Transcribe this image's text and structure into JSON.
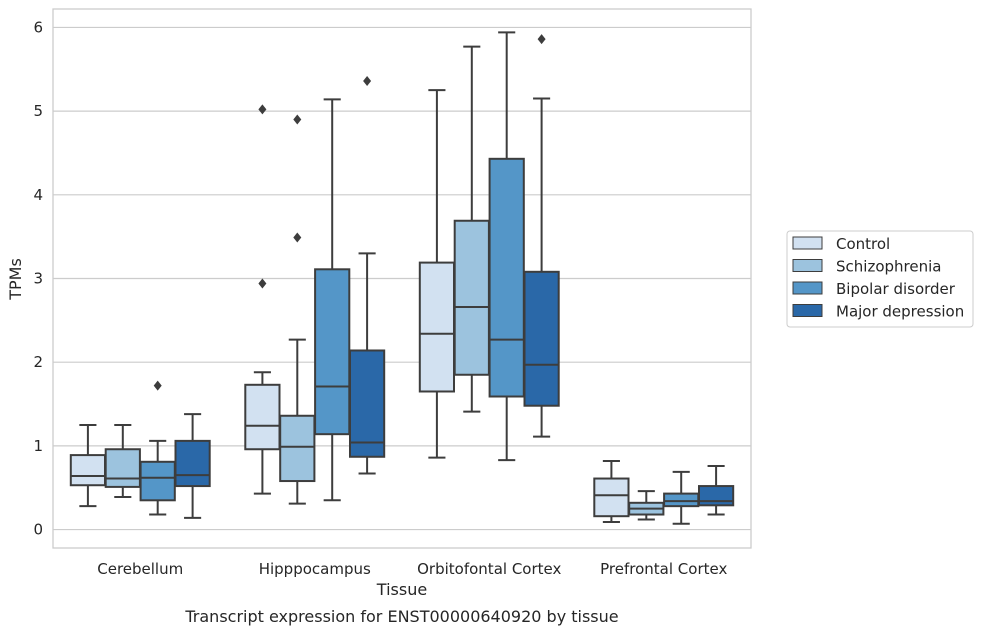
{
  "chart_data": {
    "type": "box",
    "xlabel": "Tissue",
    "ylabel": "TPMs",
    "caption": "Transcript expression for ENST00000640920 by tissue",
    "ylim": [
      -0.22,
      6.22
    ],
    "yticks": [
      "0",
      "1",
      "2",
      "3",
      "4",
      "5",
      "6"
    ],
    "grid": "horizontal",
    "legend_position": "right",
    "categories": [
      "Cerebellum",
      "Hipppocampus",
      "Orbitofontal Cortex",
      "Prefrontal Cortex"
    ],
    "series": [
      {
        "name": "Control",
        "color": "#d2e1f1",
        "boxes": [
          {
            "whislo": 0.28,
            "q1": 0.53,
            "med": 0.64,
            "q3": 0.89,
            "whishi": 1.25,
            "fliers": []
          },
          {
            "whislo": 0.43,
            "q1": 0.96,
            "med": 1.24,
            "q3": 1.73,
            "whishi": 1.88,
            "fliers": [
              2.94,
              5.02
            ]
          },
          {
            "whislo": 0.86,
            "q1": 1.65,
            "med": 2.34,
            "q3": 3.19,
            "whishi": 5.25,
            "fliers": []
          },
          {
            "whislo": 0.09,
            "q1": 0.16,
            "med": 0.41,
            "q3": 0.61,
            "whishi": 0.82,
            "fliers": []
          }
        ]
      },
      {
        "name": "Schizophrenia",
        "color": "#9cc3de",
        "boxes": [
          {
            "whislo": 0.39,
            "q1": 0.51,
            "med": 0.61,
            "q3": 0.96,
            "whishi": 1.25,
            "fliers": []
          },
          {
            "whislo": 0.31,
            "q1": 0.58,
            "med": 0.99,
            "q3": 1.36,
            "whishi": 2.27,
            "fliers": [
              3.49,
              4.9
            ]
          },
          {
            "whislo": 1.41,
            "q1": 1.85,
            "med": 2.66,
            "q3": 3.69,
            "whishi": 5.77,
            "fliers": []
          },
          {
            "whislo": 0.12,
            "q1": 0.18,
            "med": 0.25,
            "q3": 0.32,
            "whishi": 0.46,
            "fliers": []
          }
        ]
      },
      {
        "name": "Bipolar disorder",
        "color": "#5496c8",
        "boxes": [
          {
            "whislo": 0.18,
            "q1": 0.35,
            "med": 0.62,
            "q3": 0.81,
            "whishi": 1.06,
            "fliers": [
              1.72
            ]
          },
          {
            "whislo": 0.35,
            "q1": 1.14,
            "med": 1.71,
            "q3": 3.11,
            "whishi": 5.14,
            "fliers": []
          },
          {
            "whislo": 0.83,
            "q1": 1.59,
            "med": 2.27,
            "q3": 4.43,
            "whishi": 5.94,
            "fliers": []
          },
          {
            "whislo": 0.07,
            "q1": 0.28,
            "med": 0.34,
            "q3": 0.43,
            "whishi": 0.69,
            "fliers": []
          }
        ]
      },
      {
        "name": "Major depression",
        "color": "#2a68a8",
        "boxes": [
          {
            "whislo": 0.14,
            "q1": 0.52,
            "med": 0.65,
            "q3": 1.06,
            "whishi": 1.38,
            "fliers": []
          },
          {
            "whislo": 0.67,
            "q1": 0.87,
            "med": 1.04,
            "q3": 2.14,
            "whishi": 3.3,
            "fliers": [
              5.36
            ]
          },
          {
            "whislo": 1.11,
            "q1": 1.48,
            "med": 1.97,
            "q3": 3.08,
            "whishi": 5.15,
            "fliers": [
              5.86
            ]
          },
          {
            "whislo": 0.18,
            "q1": 0.29,
            "med": 0.34,
            "q3": 0.52,
            "whishi": 0.76,
            "fliers": []
          }
        ]
      }
    ]
  }
}
